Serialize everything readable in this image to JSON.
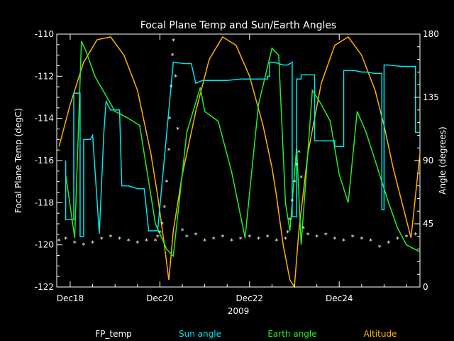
{
  "chart_data": {
    "type": "line",
    "title": "Focal Plane Temp and Sun/Earth Angles",
    "xlabel": "2009",
    "ylabel": "Focal Plane Temp (degC)",
    "y2label": "Angle (degrees)",
    "xlim": [
      17.7,
      25.8
    ],
    "ylim": [
      -122,
      -110
    ],
    "y2lim": [
      0,
      180
    ],
    "x_ticks": [
      {
        "value": 18,
        "label": "Dec18"
      },
      {
        "value": 20,
        "label": "Dec20"
      },
      {
        "value": 22,
        "label": "Dec22"
      },
      {
        "value": 24,
        "label": "Dec24"
      }
    ],
    "y_ticks": [
      {
        "value": -110,
        "label": "-110"
      },
      {
        "value": -112,
        "label": "-112"
      },
      {
        "value": -114,
        "label": "-114"
      },
      {
        "value": -116,
        "label": "-116"
      },
      {
        "value": -118,
        "label": "-118"
      },
      {
        "value": -120,
        "label": "-120"
      },
      {
        "value": -122,
        "label": "-122"
      }
    ],
    "y2_ticks": [
      {
        "value": 0,
        "label": "0"
      },
      {
        "value": 45,
        "label": "45"
      },
      {
        "value": 90,
        "label": "90"
      },
      {
        "value": 135,
        "label": "135"
      },
      {
        "value": 180,
        "label": "180"
      }
    ],
    "grid": false,
    "legend_position": "bottom",
    "colors": {
      "FP_temp": "#ffffff",
      "Sun angle": "#00e5ee",
      "Earth angle": "#22ee22",
      "Altitude": "#ffb000"
    },
    "series": [
      {
        "name": "FP_temp",
        "axis": "left",
        "style": "markers",
        "x": [
          17.75,
          17.9,
          18.1,
          18.3,
          18.5,
          18.7,
          18.9,
          19.1,
          19.3,
          19.5,
          19.7,
          19.9,
          19.95,
          20.0,
          20.05,
          20.1,
          20.15,
          20.2,
          20.22,
          20.25,
          20.28,
          20.3,
          20.35,
          20.4,
          20.5,
          20.6,
          20.8,
          21.0,
          21.2,
          21.4,
          21.6,
          21.8,
          22.0,
          22.2,
          22.4,
          22.6,
          22.8,
          22.85,
          22.9,
          22.95,
          23.0,
          23.05,
          23.1,
          23.15,
          23.2,
          23.3,
          23.5,
          23.7,
          23.9,
          24.1,
          24.3,
          24.5,
          24.7,
          24.9,
          25.1,
          25.3,
          25.5,
          25.7
        ],
        "y": [
          -119.8,
          -119.7,
          -119.9,
          -120.0,
          -119.9,
          -119.7,
          -119.6,
          -119.7,
          -119.8,
          -119.9,
          -119.8,
          -119.8,
          -119.6,
          -119.4,
          -119.0,
          -118.2,
          -117.0,
          -115.5,
          -114.0,
          -112.5,
          -111.0,
          -110.3,
          -112.0,
          -114.5,
          -119.3,
          -119.6,
          -119.5,
          -119.8,
          -119.7,
          -119.6,
          -119.8,
          -119.7,
          -119.6,
          -119.7,
          -119.6,
          -119.8,
          -119.7,
          -119.4,
          -118.8,
          -117.9,
          -117.0,
          -116.2,
          -115.6,
          -116.8,
          -119.2,
          -119.5,
          -119.6,
          -119.5,
          -119.7,
          -119.8,
          -119.6,
          -119.7,
          -119.8,
          -120.1,
          -119.9,
          -119.7,
          -119.6,
          -119.5
        ]
      },
      {
        "name": "Sun angle",
        "axis": "right",
        "style": "line",
        "x": [
          17.9,
          17.9,
          18.08,
          18.08,
          18.22,
          18.22,
          18.3,
          18.3,
          18.45,
          18.5,
          18.5,
          18.65,
          18.65,
          18.75,
          18.75,
          18.8,
          18.8,
          18.9,
          18.95,
          19.0,
          19.1,
          19.15,
          19.3,
          19.5,
          19.65,
          19.75,
          19.75,
          19.95,
          19.95,
          20.3,
          20.3,
          20.55,
          20.7,
          20.8,
          20.8,
          20.95,
          20.95,
          21.2,
          21.5,
          21.8,
          22.1,
          22.3,
          22.4,
          22.4,
          22.45,
          22.45,
          22.55,
          22.75,
          22.85,
          22.95,
          22.95,
          23.0,
          23.05,
          23.05,
          23.15,
          23.15,
          23.3,
          23.35,
          23.45,
          23.45,
          23.7,
          23.9,
          23.9,
          24.1,
          24.1,
          24.25,
          24.35,
          24.5,
          24.6,
          24.8,
          24.9,
          24.95,
          24.95,
          25.0,
          25.0,
          25.1,
          25.4,
          25.7,
          25.7,
          25.8
        ],
        "y": [
          90,
          48,
          48,
          138,
          138,
          36,
          36,
          105,
          105,
          108,
          108,
          38,
          38,
          110,
          110,
          132,
          132,
          126,
          126,
          126,
          126,
          72,
          72,
          70,
          70,
          40,
          40,
          40,
          40,
          160,
          160,
          159,
          159,
          145,
          145,
          147,
          147,
          147,
          147,
          148,
          148,
          148,
          148,
          150,
          150,
          160,
          160,
          158,
          158,
          160,
          50,
          50,
          50,
          148,
          148,
          151,
          151,
          151,
          151,
          104,
          104,
          104,
          100,
          100,
          154,
          154,
          154,
          153,
          153,
          152,
          152,
          152,
          55,
          55,
          158,
          158,
          157,
          157,
          110,
          110
        ]
      },
      {
        "name": "Earth angle",
        "axis": "right",
        "style": "line",
        "x": [
          17.9,
          18.1,
          18.25,
          18.35,
          18.55,
          19.0,
          19.3,
          19.55,
          19.9,
          20.15,
          20.3,
          20.6,
          20.9,
          21.0,
          21.3,
          21.6,
          21.9,
          22.2,
          22.5,
          22.65,
          22.8,
          22.9,
          23.05,
          23.15,
          23.4,
          23.6,
          23.8,
          24.0,
          24.2,
          24.4,
          24.6,
          24.85,
          25.1,
          25.3,
          25.5,
          25.8
        ],
        "y": [
          80,
          35,
          175,
          168,
          150,
          125,
          120,
          115,
          45,
          27,
          22,
          110,
          142,
          125,
          118,
          82,
          35,
          130,
          170,
          165,
          60,
          40,
          100,
          30,
          140,
          130,
          118,
          80,
          60,
          125,
          110,
          85,
          60,
          42,
          30,
          25
        ]
      },
      {
        "name": "Altitude",
        "axis": "right",
        "style": "line",
        "x": [
          17.75,
          18.0,
          18.3,
          18.6,
          18.9,
          19.2,
          19.5,
          19.8,
          19.95,
          20.1,
          20.2,
          20.3,
          20.5,
          20.8,
          21.1,
          21.4,
          21.7,
          22.0,
          22.3,
          22.5,
          22.6,
          22.75,
          22.9,
          23.0,
          23.1,
          23.3,
          23.6,
          23.9,
          24.2,
          24.5,
          24.8,
          25.0,
          25.2,
          25.4,
          25.6,
          25.8
        ],
        "y": [
          100,
          130,
          160,
          176,
          178,
          165,
          140,
          95,
          65,
          30,
          5,
          40,
          80,
          125,
          162,
          178,
          172,
          150,
          115,
          85,
          65,
          30,
          5,
          0,
          40,
          95,
          145,
          172,
          178,
          165,
          140,
          115,
          85,
          60,
          35,
          95
        ]
      }
    ],
    "legend": [
      {
        "label": "FP_temp",
        "color": "#ffffff"
      },
      {
        "label": "Sun angle",
        "color": "#00e5ee"
      },
      {
        "label": "Earth angle",
        "color": "#22ee22"
      },
      {
        "label": "Altitude",
        "color": "#ffb000"
      }
    ]
  }
}
